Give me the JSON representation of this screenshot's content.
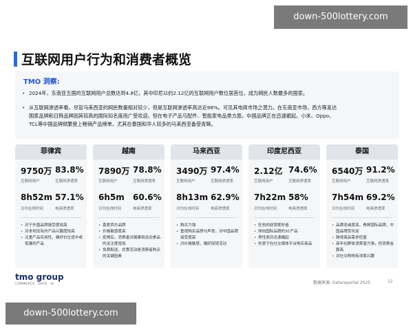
{
  "watermark_top": "down-500lottery.com",
  "watermark_bottom": "down-500lottery.com",
  "title": "互联网用户行为和消费者概览",
  "insight": {
    "heading": "TMO 洞察:",
    "bullet1": "2024年，东南亚五国的互联网用户总数达到4.8亿，其中印尼以约2.12亿的互联网用户数位居首位，成为网民人数最多的国家。",
    "bullet2_line1": "从互联网渗透率看，尽管马来西亚的网民数量相对较少，但是互联网渗透率高达近98%。可见其电商市场之潜力。在东南亚市场，西方等发达",
    "bullet2_line2": "国家品牌和日韩品牌因其较高的国际知名度而广受欢迎。但在电子产品与配件、智能家电品类方面，中国品牌正在迅速崛起。小米、Oppo、",
    "bullet2_line3": "TCL等中国品牌频繁登上畅销产品榜单，尤其在泰国和华人较多的马来西亚备受青睐。"
  },
  "labels": {
    "users": "互联网用户",
    "penetration": "互联网渗透率",
    "online_time": "日均在线时间",
    "ecommerce_penetration": "电商渗透率"
  },
  "countries": [
    {
      "name": "菲律宾",
      "users": "9750万",
      "penetration": "83.8%",
      "online_time": "8h52m",
      "ecommerce": "57.1%",
      "notes": [
        "对于外国品牌接受度较高",
        "对本地没有的产品兴趣度较高",
        "注重产品实用性，偏好价位适中或低廉的产品"
      ]
    },
    {
      "name": "越南",
      "users": "7890万",
      "penetration": "78.8%",
      "online_time": "6h5m",
      "ecommerce": "60.6%",
      "notes": [
        "喜爱西方品牌",
        "价格敏感度高",
        "疫情后，消费者对健康和运动食品的关注度增加",
        "免费配送、优惠活动是消费者购买的关键因素"
      ]
    },
    {
      "name": "马来西亚",
      "users": "3490万",
      "penetration": "97.4%",
      "online_time": "8h13m",
      "ecommerce": "62.9%",
      "notes": [
        "购买力强",
        "重视购买品牌与声誉，对中国品牌接受度高",
        "对价格敏感，偏好促销活动"
      ]
    },
    {
      "name": "印度尼西亚",
      "users": "2.12亿",
      "penetration": "74.6%",
      "online_time": "7h22m",
      "ecommerce": "58%",
      "notes": [
        "狂热的促销爱好者",
        "倾向国际品牌的3C产品",
        "男性类目迅速崛起",
        "热衷于在社交媒体平台购买商品"
      ]
    },
    {
      "name": "泰国",
      "users": "6540万",
      "penetration": "91.2%",
      "online_time": "7h54m",
      "ecommerce": "69.2%",
      "notes": [
        "品牌忠诚度高，青睐国际品牌，中国品牌受欢迎",
        "跨境商品需求旺盛",
        "高年纪群体消费潜力强，但消费金额高",
        "对社交购物有浓厚兴趣"
      ]
    }
  ],
  "footer": {
    "logo": "tmo group",
    "logo_sub": "COMMERCE · DATA · AI",
    "source": "数据来源: Datareportal 2025",
    "page": "12"
  }
}
